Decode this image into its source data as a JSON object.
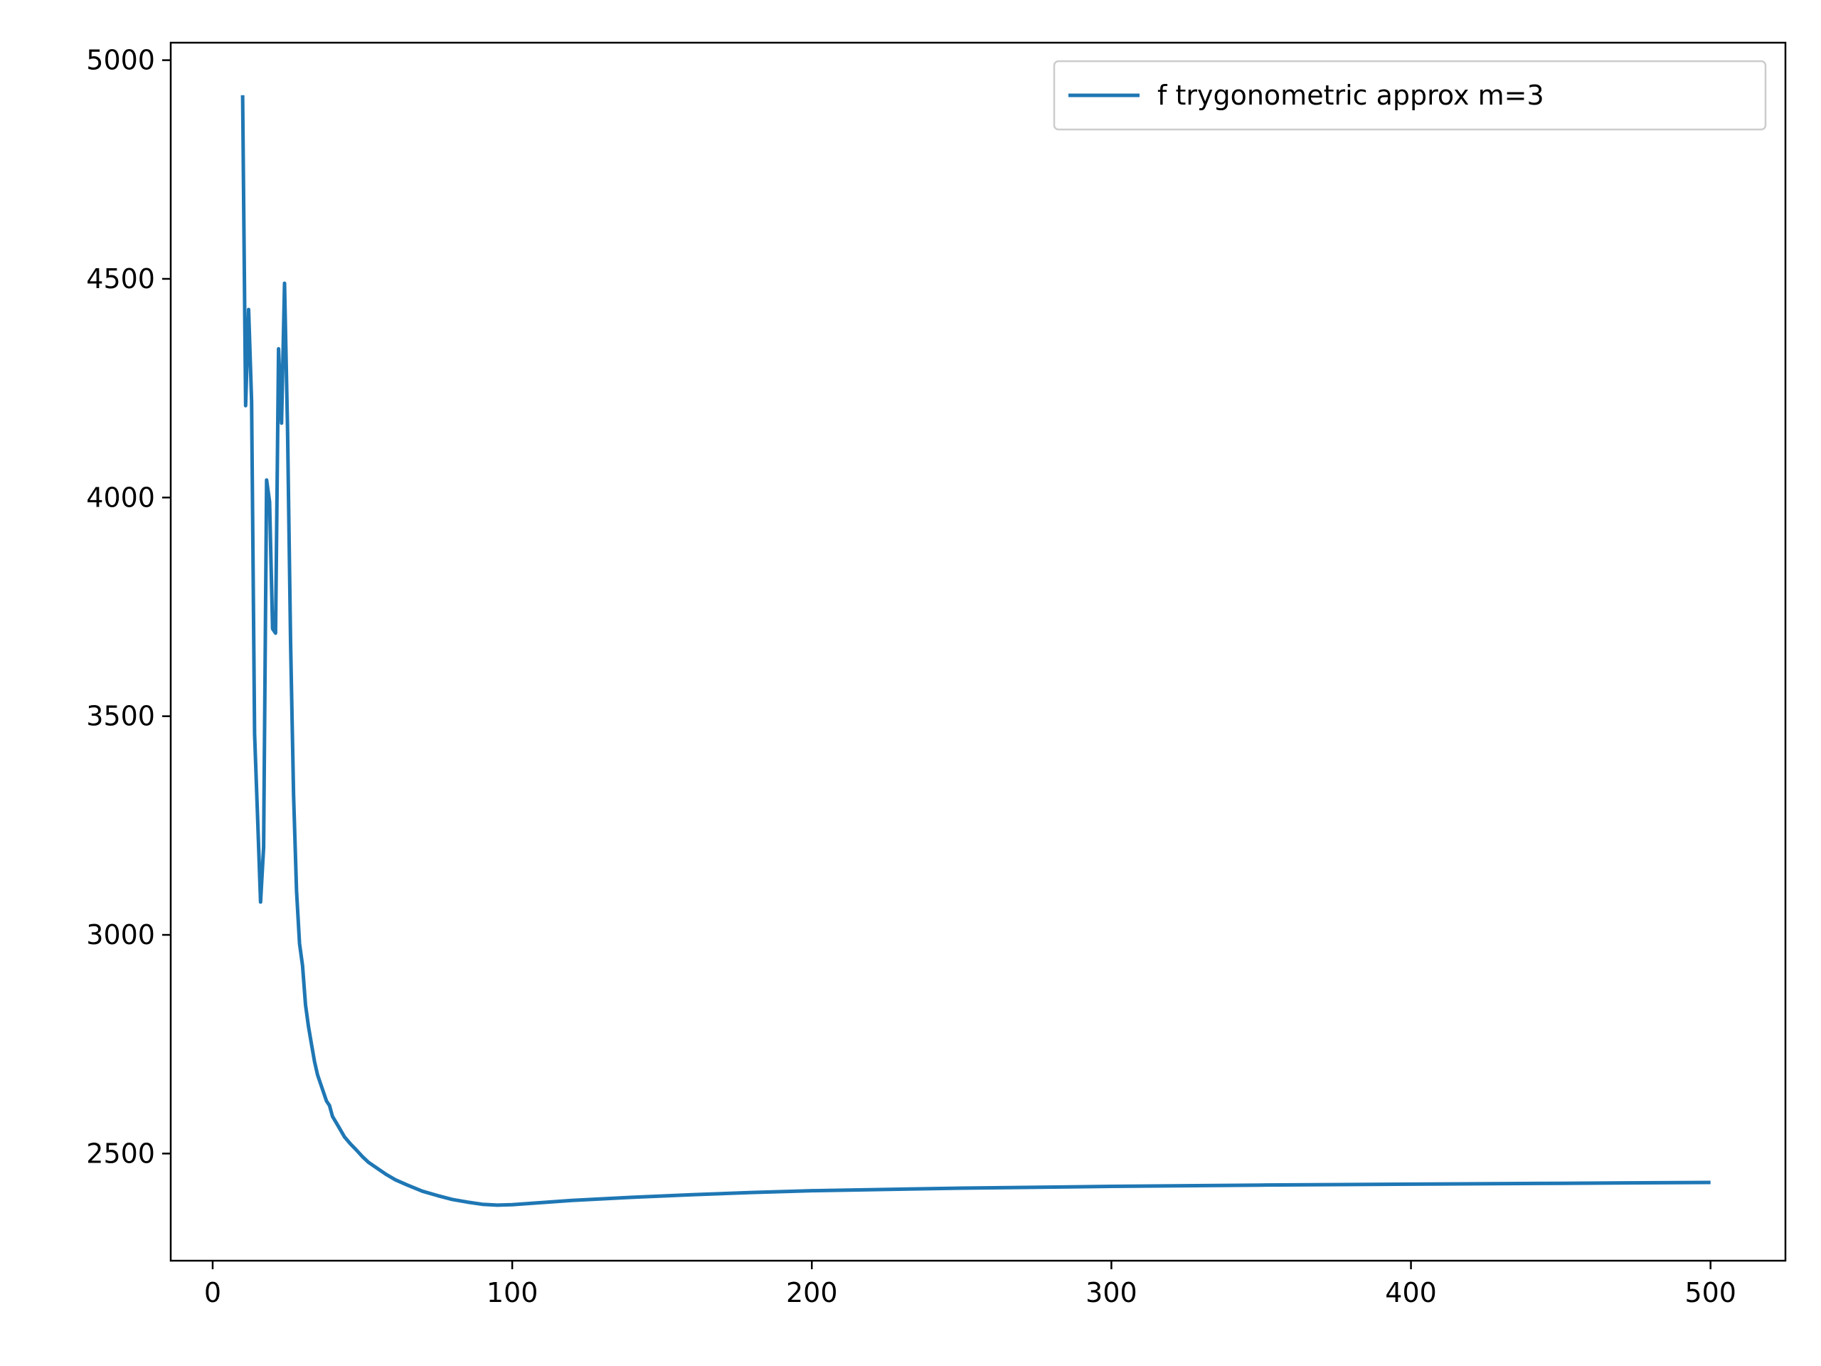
{
  "chart_data": {
    "type": "line",
    "title": "",
    "xlabel": "",
    "ylabel": "",
    "xlim": [
      -14,
      525
    ],
    "ylim": [
      2255,
      5040
    ],
    "xticks": [
      0,
      100,
      200,
      300,
      400,
      500
    ],
    "yticks": [
      2500,
      3000,
      3500,
      4000,
      4500,
      5000
    ],
    "xtick_labels": [
      "0",
      "100",
      "200",
      "300",
      "400",
      "500"
    ],
    "ytick_labels": [
      "2500",
      "3000",
      "3500",
      "4000",
      "4500",
      "5000"
    ],
    "grid": false,
    "legend": {
      "placement": "top-right"
    },
    "series": [
      {
        "name": "f trygonometric approx m=3",
        "color": "#1f77b4",
        "x": [
          10,
          11,
          12,
          13,
          14,
          15,
          16,
          17,
          18,
          19,
          20,
          21,
          22,
          23,
          24,
          25,
          26,
          27,
          28,
          29,
          30,
          31,
          32,
          33,
          34,
          35,
          36,
          37,
          38,
          39,
          40,
          42,
          44,
          46,
          48,
          50,
          52,
          55,
          58,
          61,
          65,
          70,
          75,
          80,
          85,
          90,
          95,
          100,
          110,
          120,
          140,
          160,
          180,
          200,
          250,
          300,
          350,
          400,
          450,
          500
        ],
        "y": [
          4920,
          4210,
          4430,
          4220,
          3460,
          3270,
          3075,
          3200,
          4040,
          3990,
          3700,
          3690,
          4340,
          4170,
          4490,
          4160,
          3670,
          3320,
          3100,
          2980,
          2930,
          2840,
          2790,
          2750,
          2710,
          2680,
          2660,
          2640,
          2620,
          2610,
          2585,
          2562,
          2538,
          2522,
          2508,
          2493,
          2480,
          2466,
          2452,
          2440,
          2428,
          2414,
          2404,
          2395,
          2389,
          2384,
          2382,
          2383,
          2388,
          2393,
          2400,
          2406,
          2411,
          2415,
          2421,
          2425,
          2428,
          2430,
          2432,
          2434
        ]
      }
    ]
  }
}
